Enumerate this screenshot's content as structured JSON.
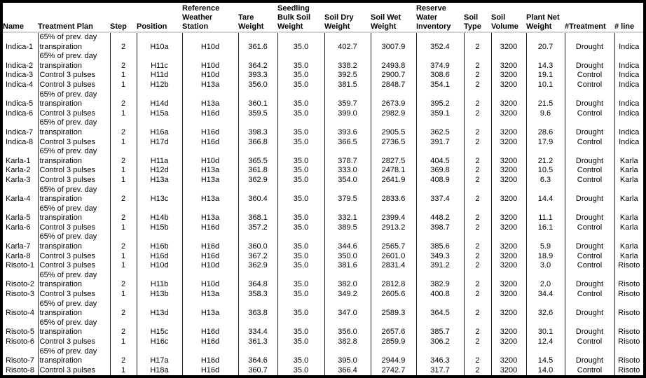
{
  "colors": {
    "frame_border": "#000000",
    "background": "#ffffff",
    "text": "#000000",
    "header_divider": "#d4d4d4",
    "grid_line": "#1f1f1f"
  },
  "table": {
    "columns": [
      {
        "key": "name",
        "label": "Name"
      },
      {
        "key": "plan",
        "label": "Treatment Plan"
      },
      {
        "key": "step",
        "label": "Step"
      },
      {
        "key": "position",
        "label": "Position"
      },
      {
        "key": "station",
        "label": "Reference Weather Station"
      },
      {
        "key": "tare",
        "label": "Tare Weight"
      },
      {
        "key": "seedling_bulk",
        "label": "Seedling Bulk Soil Weight"
      },
      {
        "key": "soil_dry",
        "label": "Soil Dry Weight"
      },
      {
        "key": "soil_wet",
        "label": "Soil Wet Weight"
      },
      {
        "key": "reserve",
        "label": "Reserve Water Inventory"
      },
      {
        "key": "soil_type",
        "label": "Soil Type"
      },
      {
        "key": "soil_volume",
        "label": "Soil Volume"
      },
      {
        "key": "plant_net",
        "label": "Plant Net Weight"
      },
      {
        "key": "treatment",
        "label": "#Treatment"
      },
      {
        "key": "line",
        "label": "# line"
      }
    ],
    "rows": [
      {
        "name": "Indica-1",
        "plan": "65% of prev. day transpiration",
        "step": "2",
        "position": "H10a",
        "station": "H10d",
        "tare": "361.6",
        "seedling_bulk": "35.0",
        "soil_dry": "402.7",
        "soil_wet": "3007.9",
        "reserve": "352.4",
        "soil_type": "2",
        "soil_volume": "3200",
        "plant_net": "20.7",
        "treatment": "Drought",
        "line": "Indica"
      },
      {
        "name": "Indica-2",
        "plan": "65% of prev. day transpiration",
        "step": "2",
        "position": "H11c",
        "station": "H10d",
        "tare": "364.2",
        "seedling_bulk": "35.0",
        "soil_dry": "338.2",
        "soil_wet": "2493.8",
        "reserve": "374.9",
        "soil_type": "2",
        "soil_volume": "3200",
        "plant_net": "14.3",
        "treatment": "Drought",
        "line": "Indica"
      },
      {
        "name": "Indica-3",
        "plan": "Control 3 pulses",
        "step": "1",
        "position": "H11d",
        "station": "H10d",
        "tare": "393.3",
        "seedling_bulk": "35.0",
        "soil_dry": "392.5",
        "soil_wet": "2900.7",
        "reserve": "308.6",
        "soil_type": "2",
        "soil_volume": "3200",
        "plant_net": "19.1",
        "treatment": "Control",
        "line": "Indica"
      },
      {
        "name": "Indica-4",
        "plan": "Control 3 pulses",
        "step": "1",
        "position": "H12b",
        "station": "H13a",
        "tare": "356.0",
        "seedling_bulk": "35.0",
        "soil_dry": "381.5",
        "soil_wet": "2848.7",
        "reserve": "354.1",
        "soil_type": "2",
        "soil_volume": "3200",
        "plant_net": "10.1",
        "treatment": "Control",
        "line": "Indica"
      },
      {
        "name": "Indica-5",
        "plan": "65% of prev. day transpiration",
        "step": "2",
        "position": "H14d",
        "station": "H13a",
        "tare": "360.1",
        "seedling_bulk": "35.0",
        "soil_dry": "359.7",
        "soil_wet": "2673.9",
        "reserve": "395.2",
        "soil_type": "2",
        "soil_volume": "3200",
        "plant_net": "21.5",
        "treatment": "Drought",
        "line": "Indica"
      },
      {
        "name": "Indica-6",
        "plan": "Control 3 pulses",
        "step": "1",
        "position": "H15a",
        "station": "H16d",
        "tare": "359.5",
        "seedling_bulk": "35.0",
        "soil_dry": "399.0",
        "soil_wet": "2982.9",
        "reserve": "359.1",
        "soil_type": "2",
        "soil_volume": "3200",
        "plant_net": "9.6",
        "treatment": "Control",
        "line": "Indica"
      },
      {
        "name": "Indica-7",
        "plan": "65% of prev. day transpiration",
        "step": "2",
        "position": "H16a",
        "station": "H16d",
        "tare": "398.3",
        "seedling_bulk": "35.0",
        "soil_dry": "393.6",
        "soil_wet": "2905.5",
        "reserve": "362.5",
        "soil_type": "2",
        "soil_volume": "3200",
        "plant_net": "28.6",
        "treatment": "Drought",
        "line": "Indica"
      },
      {
        "name": "Indica-8",
        "plan": "Control 3 pulses",
        "step": "1",
        "position": "H17d",
        "station": "H16d",
        "tare": "366.8",
        "seedling_bulk": "35.0",
        "soil_dry": "366.5",
        "soil_wet": "2736.5",
        "reserve": "391.7",
        "soil_type": "2",
        "soil_volume": "3200",
        "plant_net": "17.9",
        "treatment": "Control",
        "line": "Indica"
      },
      {
        "name": "Karla-1",
        "plan": "65% of prev. day transpiration",
        "step": "2",
        "position": "H11a",
        "station": "H10d",
        "tare": "365.5",
        "seedling_bulk": "35.0",
        "soil_dry": "378.7",
        "soil_wet": "2827.5",
        "reserve": "404.5",
        "soil_type": "2",
        "soil_volume": "3200",
        "plant_net": "21.2",
        "treatment": "Drought",
        "line": "Karla"
      },
      {
        "name": "Karla-2",
        "plan": "Control 3 pulses",
        "step": "1",
        "position": "H12d",
        "station": "H13a",
        "tare": "361.8",
        "seedling_bulk": "35.0",
        "soil_dry": "333.0",
        "soil_wet": "2478.1",
        "reserve": "369.8",
        "soil_type": "2",
        "soil_volume": "3200",
        "plant_net": "10.5",
        "treatment": "Control",
        "line": "Karla"
      },
      {
        "name": "Karla-3",
        "plan": "Control 3 pulses",
        "step": "1",
        "position": "H13a",
        "station": "H13a",
        "tare": "362.9",
        "seedling_bulk": "35.0",
        "soil_dry": "354.0",
        "soil_wet": "2641.9",
        "reserve": "408.9",
        "soil_type": "2",
        "soil_volume": "3200",
        "plant_net": "6.3",
        "treatment": "Control",
        "line": "Karla"
      },
      {
        "name": "Karla-4",
        "plan": "65% of prev. day transpiration",
        "step": "2",
        "position": "H13c",
        "station": "H13a",
        "tare": "360.4",
        "seedling_bulk": "35.0",
        "soil_dry": "379.5",
        "soil_wet": "2833.6",
        "reserve": "337.4",
        "soil_type": "2",
        "soil_volume": "3200",
        "plant_net": "14.4",
        "treatment": "Drought",
        "line": "Karla"
      },
      {
        "name": "Karla-5",
        "plan": "65% of prev. day transpiration",
        "step": "2",
        "position": "H14b",
        "station": "H13a",
        "tare": "368.1",
        "seedling_bulk": "35.0",
        "soil_dry": "332.1",
        "soil_wet": "2399.4",
        "reserve": "448.2",
        "soil_type": "2",
        "soil_volume": "3200",
        "plant_net": "11.1",
        "treatment": "Drought",
        "line": "Karla"
      },
      {
        "name": "Karla-6",
        "plan": "Control 3 pulses",
        "step": "1",
        "position": "H15b",
        "station": "H16d",
        "tare": "357.2",
        "seedling_bulk": "35.0",
        "soil_dry": "389.5",
        "soil_wet": "2913.2",
        "reserve": "398.7",
        "soil_type": "2",
        "soil_volume": "3200",
        "plant_net": "16.1",
        "treatment": "Control",
        "line": "Karla"
      },
      {
        "name": "Karla-7",
        "plan": "65% of prev. day transpiration",
        "step": "2",
        "position": "H16b",
        "station": "H16d",
        "tare": "360.0",
        "seedling_bulk": "35.0",
        "soil_dry": "344.6",
        "soil_wet": "2565.7",
        "reserve": "385.6",
        "soil_type": "2",
        "soil_volume": "3200",
        "plant_net": "5.9",
        "treatment": "Drought",
        "line": "Karla"
      },
      {
        "name": "Karla-8",
        "plan": "Control 3 pulses",
        "step": "1",
        "position": "H16d",
        "station": "H16d",
        "tare": "367.2",
        "seedling_bulk": "35.0",
        "soil_dry": "350.0",
        "soil_wet": "2601.0",
        "reserve": "349.3",
        "soil_type": "2",
        "soil_volume": "3200",
        "plant_net": "18.9",
        "treatment": "Control",
        "line": "Karla"
      },
      {
        "name": "Risoto-1",
        "plan": "Control 3 pulses",
        "step": "1",
        "position": "H10d",
        "station": "H10d",
        "tare": "362.9",
        "seedling_bulk": "35.0",
        "soil_dry": "381.6",
        "soil_wet": "2831.4",
        "reserve": "391.2",
        "soil_type": "2",
        "soil_volume": "3200",
        "plant_net": "3.0",
        "treatment": "Control",
        "line": "Risoto"
      },
      {
        "name": "Risoto-2",
        "plan": "65% of prev. day transpiration",
        "step": "2",
        "position": "H11b",
        "station": "H10d",
        "tare": "364.8",
        "seedling_bulk": "35.0",
        "soil_dry": "382.0",
        "soil_wet": "2812.8",
        "reserve": "382.9",
        "soil_type": "2",
        "soil_volume": "3200",
        "plant_net": "2.0",
        "treatment": "Drought",
        "line": "Risoto"
      },
      {
        "name": "Risoto-3",
        "plan": "Control 3 pulses",
        "step": "1",
        "position": "H13b",
        "station": "H13a",
        "tare": "358.3",
        "seedling_bulk": "35.0",
        "soil_dry": "349.2",
        "soil_wet": "2605.6",
        "reserve": "400.8",
        "soil_type": "2",
        "soil_volume": "3200",
        "plant_net": "34.4",
        "treatment": "Control",
        "line": "Risoto"
      },
      {
        "name": "Risoto-4",
        "plan": "65% of prev. day transpiration",
        "step": "2",
        "position": "H13d",
        "station": "H13a",
        "tare": "363.8",
        "seedling_bulk": "35.0",
        "soil_dry": "347.0",
        "soil_wet": "2589.3",
        "reserve": "364.5",
        "soil_type": "2",
        "soil_volume": "3200",
        "plant_net": "32.6",
        "treatment": "Drought",
        "line": "Risoto"
      },
      {
        "name": "Risoto-5",
        "plan": "65% of prev. day transpiration",
        "step": "2",
        "position": "H15c",
        "station": "H16d",
        "tare": "334.4",
        "seedling_bulk": "35.0",
        "soil_dry": "356.0",
        "soil_wet": "2657.6",
        "reserve": "385.7",
        "soil_type": "2",
        "soil_volume": "3200",
        "plant_net": "30.1",
        "treatment": "Drought",
        "line": "Risoto"
      },
      {
        "name": "Risoto-6",
        "plan": "Control 3 pulses",
        "step": "1",
        "position": "H16c",
        "station": "H16d",
        "tare": "361.3",
        "seedling_bulk": "35.0",
        "soil_dry": "382.8",
        "soil_wet": "2859.9",
        "reserve": "306.2",
        "soil_type": "2",
        "soil_volume": "3200",
        "plant_net": "12.4",
        "treatment": "Control",
        "line": "Risoto"
      },
      {
        "name": "Risoto-7",
        "plan": "65% of prev. day transpiration",
        "step": "2",
        "position": "H17a",
        "station": "H16d",
        "tare": "364.6",
        "seedling_bulk": "35.0",
        "soil_dry": "395.0",
        "soil_wet": "2944.9",
        "reserve": "346.3",
        "soil_type": "2",
        "soil_volume": "3200",
        "plant_net": "14.5",
        "treatment": "Drought",
        "line": "Risoto"
      },
      {
        "name": "Risoto-8",
        "plan": "Control 3 pulses",
        "step": "1",
        "position": "H18a",
        "station": "H16d",
        "tare": "360.7",
        "seedling_bulk": "35.0",
        "soil_dry": "366.4",
        "soil_wet": "2742.7",
        "reserve": "317.7",
        "soil_type": "2",
        "soil_volume": "3200",
        "plant_net": "14.0",
        "treatment": "Control",
        "line": "Risoto"
      }
    ]
  }
}
